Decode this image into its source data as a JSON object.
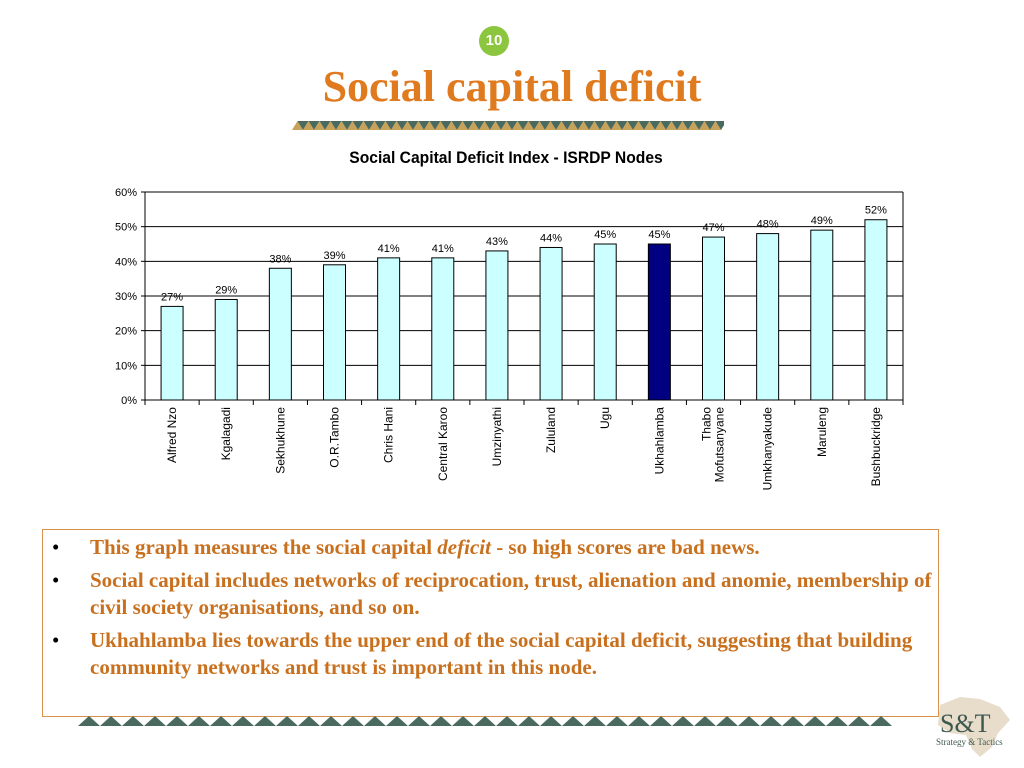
{
  "slide": {
    "number": "10",
    "title": "Social capital deficit",
    "bullets": [
      {
        "pre": "This graph measures the social capital ",
        "em": "deficit",
        "post": " - so high scores are bad news."
      },
      {
        "pre": "Social capital includes networks of  reciprocation, trust, alienation and anomie, membership of civil society organisations, and so on.",
        "em": "",
        "post": ""
      },
      {
        "pre": "Ukhahlamba lies towards the upper end of the social capital deficit, suggesting that building community networks and trust is important in this node.",
        "em": "",
        "post": ""
      }
    ],
    "logo": {
      "main": "S&T",
      "sub": "Strategy & Tactics"
    }
  },
  "colors": {
    "bar": "#ccffff",
    "highlight": "#000080",
    "accent": "#e07a1f",
    "triangle": "#4a6a60"
  },
  "chart_data": {
    "type": "bar",
    "title": "Social Capital Deficit Index - ISRDP Nodes",
    "categories": [
      "Alfred Nzo",
      "Kgalagadi",
      "Sekhukhune",
      "O.R.Tambo",
      "Chris Hani",
      "Central Karoo",
      "Umzinyathi",
      "Zululand",
      "Ugu",
      "Ukhahlamba",
      "Thabo Mofutsanyane",
      "Umkhanyakude",
      "Maruleng",
      "Bushbuckridge"
    ],
    "values": [
      27,
      29,
      38,
      39,
      41,
      41,
      43,
      44,
      45,
      45,
      47,
      48,
      49,
      52
    ],
    "value_labels": [
      "27%",
      "29%",
      "38%",
      "39%",
      "41%",
      "41%",
      "43%",
      "44%",
      "45%",
      "45%",
      "47%",
      "48%",
      "49%",
      "52%"
    ],
    "highlight": "Ukhahlamba",
    "ylim": [
      0,
      60
    ],
    "yticks": [
      "0%",
      "10%",
      "20%",
      "30%",
      "40%",
      "50%",
      "60%"
    ],
    "grid": true,
    "xlabel": "",
    "ylabel": ""
  }
}
